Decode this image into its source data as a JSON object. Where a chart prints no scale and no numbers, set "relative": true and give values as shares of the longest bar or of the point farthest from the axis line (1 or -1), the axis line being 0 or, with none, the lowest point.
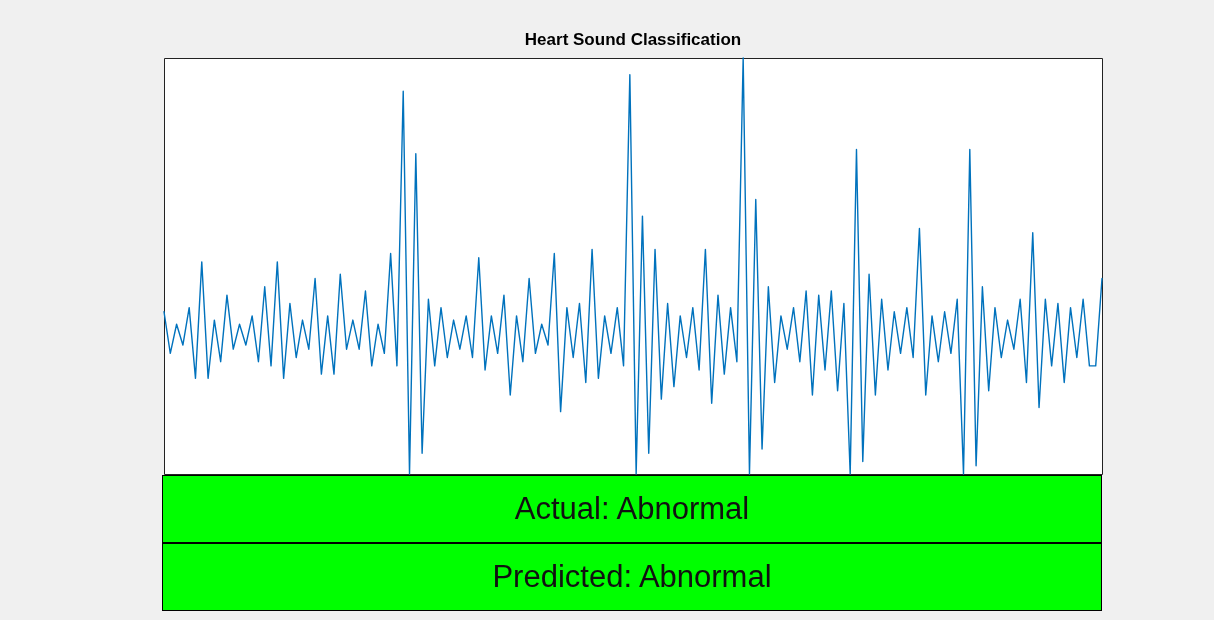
{
  "chart_data": {
    "type": "line",
    "title": "Heart Sound Classification",
    "relative": true,
    "categories": [
      null,
      null,
      null,
      null,
      null,
      null,
      null,
      null,
      null,
      null,
      null,
      null,
      null,
      null,
      null,
      null,
      null,
      null,
      null,
      null,
      null,
      null,
      null,
      null,
      null,
      null,
      null,
      null,
      null,
      null,
      null,
      null,
      null,
      null,
      null,
      null,
      null,
      null,
      null,
      null,
      null,
      null,
      null,
      null,
      null,
      null,
      null,
      null,
      null,
      null,
      null,
      null,
      null,
      null,
      null,
      null,
      null,
      null,
      null,
      null,
      null,
      null,
      null,
      null,
      null,
      null,
      null,
      null,
      null,
      null,
      null,
      null,
      null,
      null,
      null,
      null,
      null,
      null,
      null,
      null,
      null,
      null,
      null,
      null,
      null,
      null,
      null,
      null,
      null,
      null,
      null,
      null,
      null,
      null,
      null,
      null,
      null,
      null,
      null,
      null,
      null,
      null,
      null,
      null,
      null,
      null,
      null,
      null,
      null,
      null,
      null,
      null,
      null,
      null,
      null,
      null,
      null,
      null,
      null,
      null,
      null,
      null,
      null,
      null,
      null,
      null,
      null,
      null,
      null,
      null,
      null,
      null,
      null,
      null,
      null,
      null,
      null,
      null,
      null,
      null,
      null,
      null,
      null,
      null,
      null,
      null,
      null,
      null,
      null,
      null
    ],
    "series": [
      {
        "color": "#0072bd",
        "values": [
          0.39,
          0.29,
          0.36,
          0.31,
          0.4,
          0.23,
          0.51,
          0.23,
          0.37,
          0.27,
          0.43,
          0.3,
          0.36,
          0.31,
          0.38,
          0.27,
          0.45,
          0.26,
          0.51,
          0.23,
          0.41,
          0.28,
          0.37,
          0.3,
          0.47,
          0.24,
          0.38,
          0.24,
          0.48,
          0.3,
          0.37,
          0.3,
          0.44,
          0.26,
          0.36,
          0.29,
          0.53,
          0.26,
          0.92,
          0,
          0.77,
          0.05,
          0.42,
          0.26,
          0.4,
          0.28,
          0.37,
          0.3,
          0.38,
          0.28,
          0.52,
          0.25,
          0.38,
          0.29,
          0.43,
          0.19,
          0.38,
          0.27,
          0.47,
          0.29,
          0.36,
          0.31,
          0.53,
          0.15,
          0.4,
          0.28,
          0.41,
          0.22,
          0.54,
          0.23,
          0.38,
          0.29,
          0.4,
          0.26,
          0.96,
          0,
          0.62,
          0.05,
          0.54,
          0.18,
          0.41,
          0.21,
          0.38,
          0.28,
          0.4,
          0.25,
          0.54,
          0.17,
          0.43,
          0.24,
          0.4,
          0.27,
          1,
          0,
          0.66,
          0.06,
          0.45,
          0.22,
          0.38,
          0.3,
          0.4,
          0.27,
          0.44,
          0.19,
          0.43,
          0.25,
          0.44,
          0.2,
          0.41,
          0,
          0.78,
          0.03,
          0.48,
          0.19,
          0.42,
          0.25,
          0.39,
          0.29,
          0.4,
          0.28,
          0.59,
          0.19,
          0.38,
          0.27,
          0.39,
          0.29,
          0.42,
          0,
          0.78,
          0.02,
          0.45,
          0.2,
          0.4,
          0.28,
          0.37,
          0.3,
          0.42,
          0.22,
          0.58,
          0.16,
          0.42,
          0.26,
          0.41,
          0.22,
          0.4,
          0.28,
          0.42,
          0.26,
          0.26,
          0.47
        ]
      }
    ],
    "annotations": [
      "Actual: Abnormal",
      "Predicted: Abnormal"
    ]
  }
}
